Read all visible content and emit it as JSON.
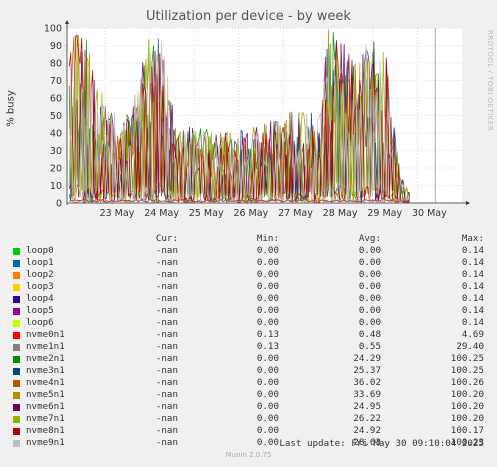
{
  "chart_data": {
    "type": "line",
    "title": "Utilization per device - by week",
    "ylabel": "% busy",
    "ylim": [
      0,
      100
    ],
    "yticks": [
      0,
      10,
      20,
      30,
      40,
      50,
      60,
      70,
      80,
      90,
      100
    ],
    "xticks": [
      "23 May",
      "24 May",
      "25 May",
      "26 May",
      "27 May",
      "28 May",
      "29 May",
      "30 May"
    ],
    "grid": true,
    "watermark": "RRDTOOL / TOBI OETIKER",
    "series_summary": [
      {
        "name": "loop0",
        "color": "#00cc00",
        "cur": "-nan",
        "min": "0.00",
        "avg": "0.00",
        "max": "0.14"
      },
      {
        "name": "loop1",
        "color": "#0066b3",
        "cur": "-nan",
        "min": "0.00",
        "avg": "0.00",
        "max": "0.14"
      },
      {
        "name": "loop2",
        "color": "#ff8000",
        "cur": "-nan",
        "min": "0.00",
        "avg": "0.00",
        "max": "0.14"
      },
      {
        "name": "loop3",
        "color": "#ffcc00",
        "cur": "-nan",
        "min": "0.00",
        "avg": "0.00",
        "max": "0.14"
      },
      {
        "name": "loop4",
        "color": "#330099",
        "cur": "-nan",
        "min": "0.00",
        "avg": "0.00",
        "max": "0.14"
      },
      {
        "name": "loop5",
        "color": "#990099",
        "cur": "-nan",
        "min": "0.00",
        "avg": "0.00",
        "max": "0.14"
      },
      {
        "name": "loop6",
        "color": "#ccff00",
        "cur": "-nan",
        "min": "0.00",
        "avg": "0.00",
        "max": "0.14"
      },
      {
        "name": "nvme0n1",
        "color": "#ff0000",
        "cur": "-nan",
        "min": "0.13",
        "avg": "0.48",
        "max": "4.69"
      },
      {
        "name": "nvme1n1",
        "color": "#808080",
        "cur": "-nan",
        "min": "0.13",
        "avg": "0.55",
        "max": "29.40"
      },
      {
        "name": "nvme2n1",
        "color": "#008f00",
        "cur": "-nan",
        "min": "0.00",
        "avg": "24.29",
        "max": "100.25"
      },
      {
        "name": "nvme3n1",
        "color": "#00487d",
        "cur": "-nan",
        "min": "0.00",
        "avg": "25.37",
        "max": "100.25"
      },
      {
        "name": "nvme4n1",
        "color": "#b35a00",
        "cur": "-nan",
        "min": "0.00",
        "avg": "36.02",
        "max": "100.26"
      },
      {
        "name": "nvme5n1",
        "color": "#b38f00",
        "cur": "-nan",
        "min": "0.00",
        "avg": "33.69",
        "max": "100.20"
      },
      {
        "name": "nvme6n1",
        "color": "#6b006b",
        "cur": "-nan",
        "min": "0.00",
        "avg": "24.95",
        "max": "100.20"
      },
      {
        "name": "nvme7n1",
        "color": "#8fb300",
        "cur": "-nan",
        "min": "0.00",
        "avg": "26.22",
        "max": "100.20"
      },
      {
        "name": "nvme8n1",
        "color": "#b30000",
        "cur": "-nan",
        "min": "0.00",
        "avg": "24.92",
        "max": "100.17"
      },
      {
        "name": "nvme9n1",
        "color": "#bebebe",
        "cur": "-nan",
        "min": "0.00",
        "avg": "28.63",
        "max": "100.23"
      }
    ],
    "active_series": [
      "nvme2n1",
      "nvme3n1",
      "nvme4n1",
      "nvme5n1",
      "nvme6n1",
      "nvme7n1",
      "nvme8n1",
      "nvme9n1"
    ],
    "activity_profile": {
      "x_days": [
        22.0,
        22.3,
        22.6,
        23.0,
        23.4,
        23.7,
        24.0,
        24.3,
        24.6,
        25.0,
        25.5,
        26.0,
        26.5,
        27.0,
        27.4,
        27.8,
        28.0,
        28.3,
        28.6,
        29.0,
        29.3,
        29.6,
        29.85
      ],
      "peak_percent": [
        85,
        98,
        95,
        60,
        45,
        65,
        100,
        95,
        40,
        45,
        40,
        42,
        45,
        50,
        55,
        50,
        100,
        95,
        80,
        98,
        85,
        20,
        5
      ]
    }
  },
  "legend_header": {
    "cur": "Cur:",
    "min": "Min:",
    "avg": "Avg:",
    "max": "Max:"
  },
  "last_update": "Last update: Fri May 30 09:10:04 2025",
  "footer": "Munin 2.0.75"
}
